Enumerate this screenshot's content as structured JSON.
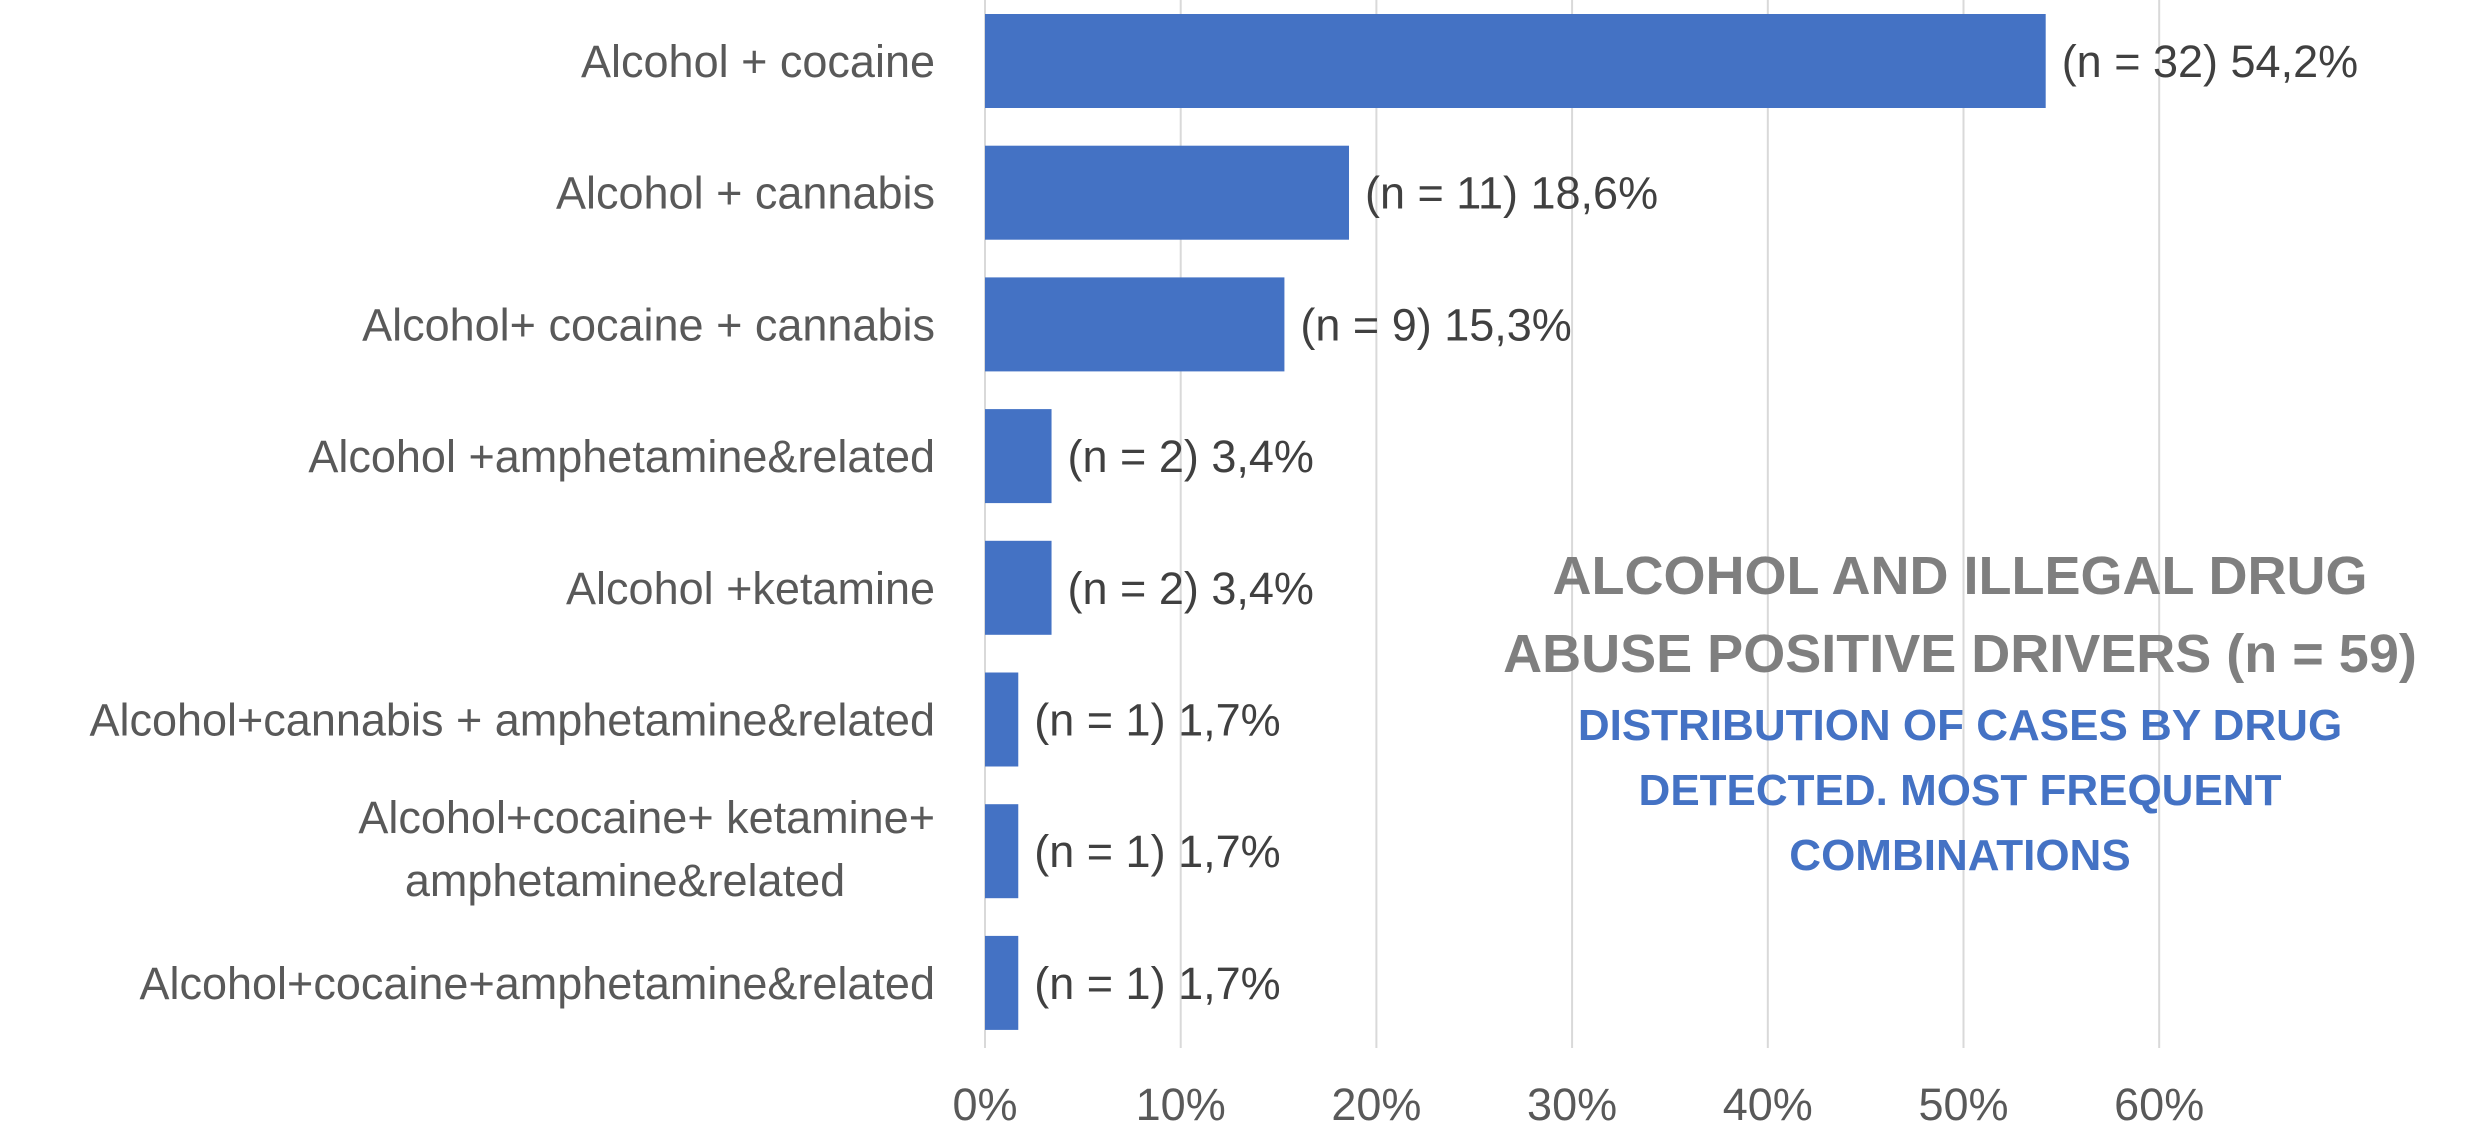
{
  "chart_data": {
    "type": "bar",
    "orientation": "horizontal",
    "title_lines": [
      "ALCOHOL AND ILLEGAL DRUG",
      "ABUSE POSITIVE DRIVERS (n = 59)"
    ],
    "subtitle_lines": [
      "DISTRIBUTION OF CASES BY DRUG",
      "DETECTED. MOST FREQUENT",
      "COMBINATIONS"
    ],
    "categories": [
      [
        "Alcohol + cocaine"
      ],
      [
        "Alcohol + cannabis"
      ],
      [
        "Alcohol+ cocaine + cannabis"
      ],
      [
        "Alcohol +amphetamine&related"
      ],
      [
        "Alcohol +ketamine"
      ],
      [
        "Alcohol+cannabis + amphetamine&related"
      ],
      [
        "Alcohol+cocaine+ ketamine+",
        "amphetamine&related"
      ],
      [
        "Alcohol+cocaine+amphetamine&related"
      ]
    ],
    "values": [
      54.2,
      18.6,
      15.3,
      3.4,
      3.4,
      1.7,
      1.7,
      1.7
    ],
    "data_labels": [
      "(n = 32) 54,2%",
      "(n = 11) 18,6%",
      "(n = 9) 15,3%",
      "(n = 2) 3,4%",
      "(n = 2) 3,4%",
      "(n = 1) 1,7%",
      "(n = 1) 1,7%",
      "(n = 1) 1,7%"
    ],
    "xticks": [
      "0%",
      "10%",
      "20%",
      "30%",
      "40%",
      "50%",
      "60%"
    ],
    "xlim": [
      0,
      70
    ],
    "grid": true,
    "bar_color": "#4472c4"
  }
}
